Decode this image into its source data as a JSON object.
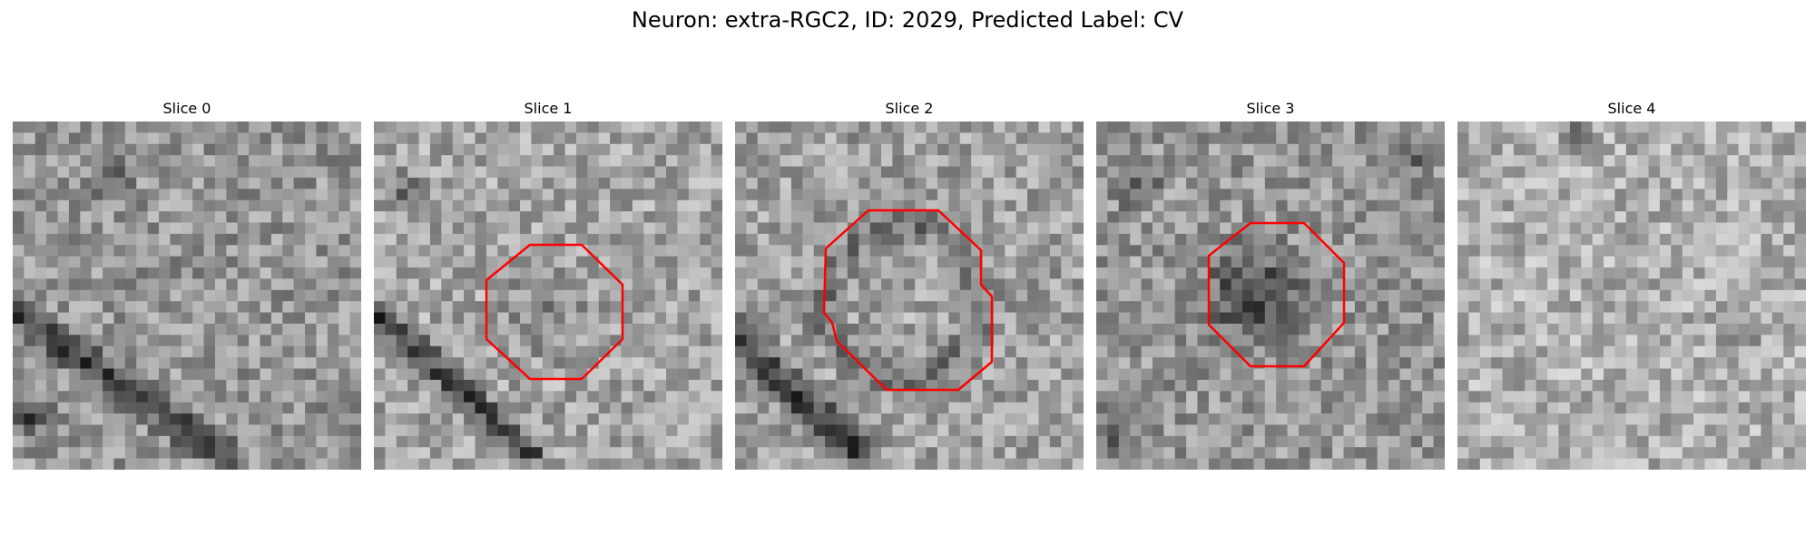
{
  "figure": {
    "title": "Neuron: extra-RGC2, ID: 2029, Predicted Label: CV",
    "outline_color": "#ff0000"
  },
  "panels": [
    {
      "title": "Slice 0",
      "has_outline": false,
      "dark_features": "diagonal dark band lower-left; dark blotch upper-left"
    },
    {
      "title": "Slice 1",
      "has_outline": true,
      "dark_features": "darker center region inside octagon; dark diagonal band lower-left"
    },
    {
      "title": "Slice 2",
      "has_outline": true,
      "dark_features": "mid-gray ring with lighter core; dark band lower-left"
    },
    {
      "title": "Slice 3",
      "has_outline": true,
      "dark_features": "very dark cell body inside octagon"
    },
    {
      "title": "Slice 4",
      "has_outline": false,
      "dark_features": "mostly light texture with scattered dark patches"
    }
  ]
}
